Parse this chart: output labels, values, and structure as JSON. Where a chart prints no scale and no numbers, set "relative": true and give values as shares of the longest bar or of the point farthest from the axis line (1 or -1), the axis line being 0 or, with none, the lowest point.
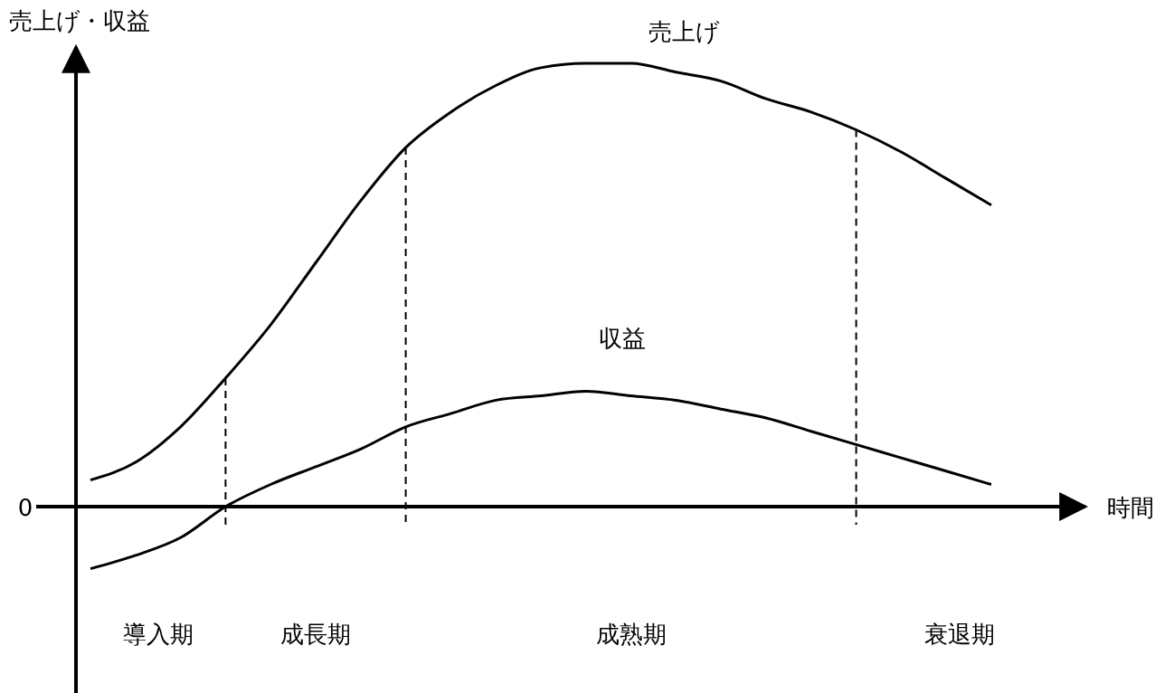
{
  "chart_data": {
    "type": "line",
    "relative": true,
    "xlabel": "時間",
    "ylabel": "売上げ・収益",
    "categories": [
      null,
      null,
      null,
      null,
      null,
      null,
      null,
      null,
      null,
      null,
      null,
      null,
      null,
      null,
      null,
      null,
      null,
      null,
      null,
      null,
      null
    ],
    "series": [
      {
        "name": "売上げ",
        "color": "#000000",
        "values": [
          0.06,
          0.1,
          0.18,
          0.29,
          0.41,
          0.55,
          0.69,
          0.81,
          0.89,
          0.95,
          0.99,
          1.0,
          1.0,
          0.98,
          0.96,
          0.92,
          0.89,
          0.85,
          0.8,
          0.74,
          0.68
        ]
      },
      {
        "name": "収益",
        "color": "#000000",
        "values": [
          -0.14,
          -0.11,
          -0.07,
          0.0,
          0.05,
          0.09,
          0.13,
          0.18,
          0.21,
          0.24,
          0.25,
          0.26,
          0.25,
          0.24,
          0.22,
          0.2,
          0.17,
          0.14,
          0.11,
          0.08,
          0.05
        ]
      }
    ],
    "annotations": [
      "0",
      "導入期",
      "成長期",
      "成熟期",
      "衰退期"
    ],
    "line_style": "solid",
    "marker": "none"
  }
}
